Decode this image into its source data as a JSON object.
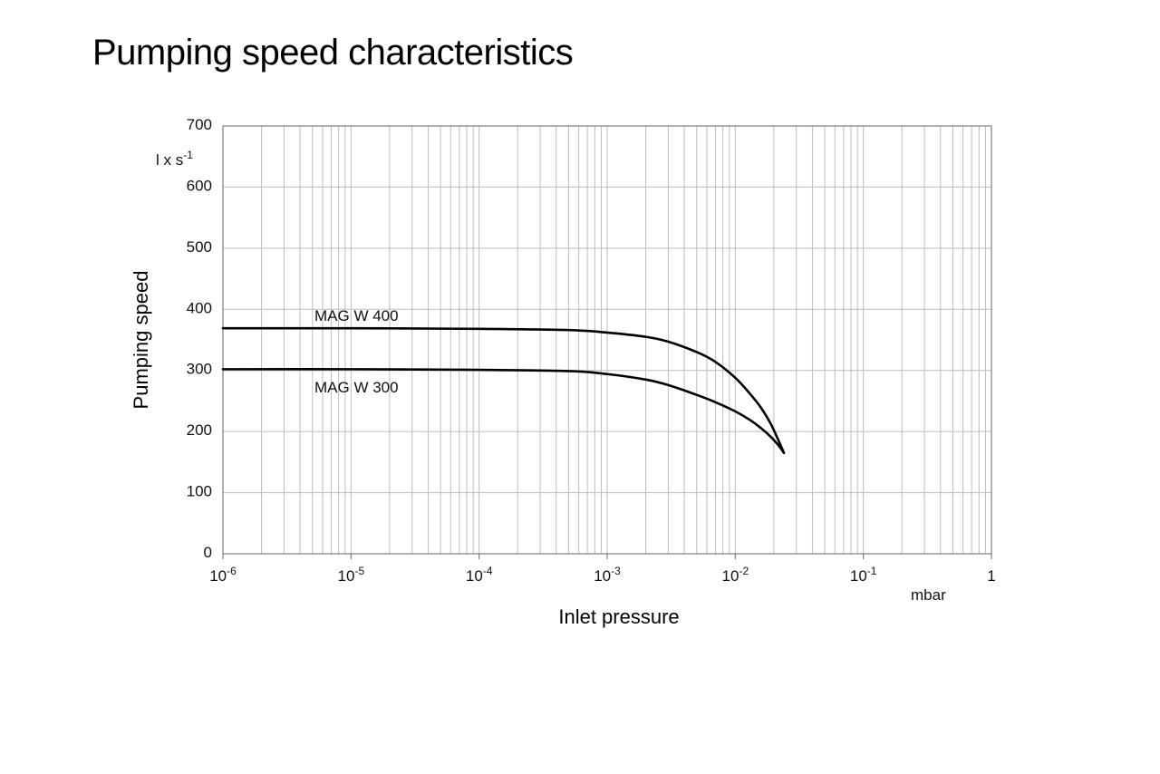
{
  "chart_data": {
    "type": "line",
    "title": "Pumping speed characteristics",
    "xlabel": "Inlet pressure",
    "ylabel": "Pumping speed",
    "x_unit": "mbar",
    "y_unit": {
      "base": "l x s",
      "sup": "-1"
    },
    "x_scale": "log",
    "xlim": [
      1e-06,
      1
    ],
    "ylim": [
      0,
      700
    ],
    "grid": true,
    "x_ticks": [
      {
        "value": 1e-06,
        "base": "10",
        "sup": "-6"
      },
      {
        "value": 1e-05,
        "base": "10",
        "sup": "-5"
      },
      {
        "value": 0.0001,
        "base": "10",
        "sup": "-4"
      },
      {
        "value": 0.001,
        "base": "10",
        "sup": "-3"
      },
      {
        "value": 0.01,
        "base": "10",
        "sup": "-2"
      },
      {
        "value": 0.1,
        "base": "10",
        "sup": "-1"
      },
      {
        "value": 1,
        "base": "1",
        "sup": ""
      }
    ],
    "y_ticks": [
      "0",
      "100",
      "200",
      "300",
      "400",
      "500",
      "600",
      "700"
    ],
    "series": [
      {
        "name": "MAG W 400",
        "x": [
          1e-06,
          1e-05,
          0.0001,
          0.0005,
          0.001,
          0.002,
          0.003,
          0.005,
          0.007,
          0.01,
          0.013,
          0.016,
          0.019,
          0.022,
          0.024
        ],
        "y": [
          369,
          369,
          368,
          366,
          362,
          355,
          347,
          330,
          314,
          288,
          262,
          238,
          212,
          183,
          165
        ]
      },
      {
        "name": "MAG W 300",
        "x": [
          1e-06,
          1e-05,
          0.0001,
          0.0005,
          0.001,
          0.002,
          0.003,
          0.005,
          0.007,
          0.01,
          0.013,
          0.016,
          0.019,
          0.022,
          0.024
        ],
        "y": [
          302,
          302,
          301,
          299,
          294,
          285,
          276,
          260,
          248,
          233,
          219,
          205,
          191,
          176,
          165
        ]
      }
    ]
  }
}
